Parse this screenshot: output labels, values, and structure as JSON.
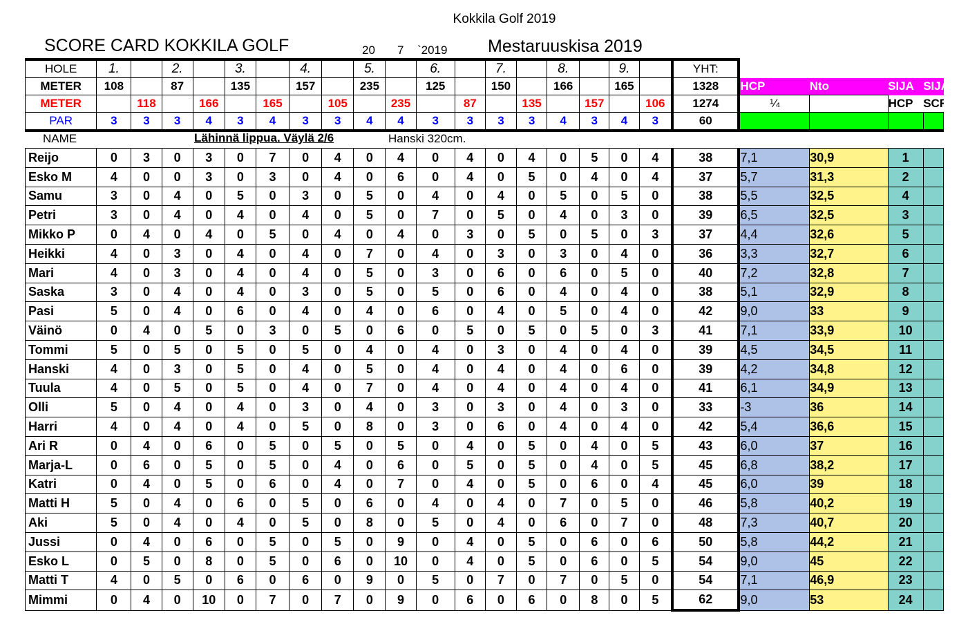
{
  "doc_title": "Kokkila Golf 2019",
  "card_title": "SCORE  CARD KOKKILA GOLF",
  "date": {
    "day": "20",
    "month": "7",
    "year": "`2019"
  },
  "competition": "Mestaruuskisa 2019",
  "labels": {
    "hole": "HOLE",
    "meter": "METER",
    "meter_red": "METER",
    "par": "PAR",
    "yht": "YHT:",
    "name": "NAME",
    "hcp": "HCP",
    "nto": "Nto",
    "sija1": "SIJA",
    "sija2": "SIJA",
    "hcp_small": "HCP",
    "scr_small": "SCR",
    "quarter": "¼"
  },
  "note": "Lähinnä lippua. Väylä 2/6",
  "note2": "Hanski 320cm.",
  "holes": [
    "1.",
    "2.",
    "3.",
    "4.",
    "5.",
    "6.",
    "7.",
    "8.",
    "9."
  ],
  "meter_row": [
    "108",
    "",
    "87",
    "",
    "135",
    "",
    "157",
    "",
    "235",
    "",
    "125",
    "",
    "150",
    "",
    "166",
    "",
    "165",
    ""
  ],
  "meter_total": "1328",
  "meter_red_row": [
    "",
    "118",
    "",
    "166",
    "",
    "165",
    "",
    "105",
    "",
    "235",
    "",
    "87",
    "",
    "135",
    "",
    "157",
    "",
    "106"
  ],
  "meter_red_total": "1274",
  "par_row": [
    "3",
    "3",
    "3",
    "4",
    "3",
    "4",
    "3",
    "3",
    "4",
    "4",
    "3",
    "3",
    "3",
    "3",
    "4",
    "3",
    "4",
    "3"
  ],
  "par_total": "60",
  "players": [
    {
      "name": "Reijo",
      "scores": [
        "0",
        "3",
        "0",
        "3",
        "0",
        "7",
        "0",
        "4",
        "0",
        "4",
        "0",
        "4",
        "0",
        "4",
        "0",
        "5",
        "0",
        "4"
      ],
      "total": "38",
      "hcp": "7,1",
      "nto": "30,9",
      "sija": "1"
    },
    {
      "name": "Esko M",
      "scores": [
        "4",
        "0",
        "0",
        "3",
        "0",
        "3",
        "0",
        "4",
        "0",
        "6",
        "0",
        "4",
        "0",
        "5",
        "0",
        "4",
        "0",
        "4"
      ],
      "total": "37",
      "hcp": " 5,7",
      "nto": "31,3",
      "sija": "2"
    },
    {
      "name": "Samu",
      "scores": [
        "3",
        "0",
        "4",
        "0",
        "5",
        "0",
        "3",
        "0",
        "5",
        "0",
        "4",
        "0",
        "4",
        "0",
        "5",
        "0",
        "5",
        "0"
      ],
      "total": "38",
      "hcp": "5,5",
      "nto": "32,5",
      "sija": "4"
    },
    {
      "name": "Petri",
      "scores": [
        "3",
        "0",
        "4",
        "0",
        "4",
        "0",
        "4",
        "0",
        "5",
        "0",
        "7",
        "0",
        "5",
        "0",
        "4",
        "0",
        "3",
        "0"
      ],
      "total": "39",
      "hcp": " 6,5",
      "nto": "32,5",
      "sija": "3"
    },
    {
      "name": "Mikko P",
      "scores": [
        "0",
        "4",
        "0",
        "4",
        "0",
        "5",
        "0",
        "4",
        "0",
        "4",
        "0",
        "3",
        "0",
        "5",
        "0",
        "5",
        "0",
        "3"
      ],
      "total": "37",
      "hcp": " 4,4",
      "nto": "32,6",
      "sija": "5"
    },
    {
      "name": "Heikki",
      "scores": [
        "4",
        "0",
        "3",
        "0",
        "4",
        "0",
        "4",
        "0",
        "7",
        "0",
        "4",
        "0",
        "3",
        "0",
        "3",
        "0",
        "4",
        "0"
      ],
      "total": "36",
      "hcp": " 3,3",
      "nto": "32,7",
      "sija": "6"
    },
    {
      "name": "Mari",
      "scores": [
        "4",
        "0",
        "3",
        "0",
        "4",
        "0",
        "4",
        "0",
        "5",
        "0",
        "3",
        "0",
        "6",
        "0",
        "6",
        "0",
        "5",
        "0"
      ],
      "total": "40",
      "hcp": "7,2",
      "nto": "32,8",
      "sija": "7"
    },
    {
      "name": "Saska",
      "scores": [
        "3",
        "0",
        "4",
        "0",
        "4",
        "0",
        "3",
        "0",
        "5",
        "0",
        "5",
        "0",
        "6",
        "0",
        "4",
        "0",
        "4",
        "0"
      ],
      "total": "38",
      "hcp": " 5,1",
      "nto": "32,9",
      "sija": "8"
    },
    {
      "name": "Pasi",
      "scores": [
        "5",
        "0",
        "4",
        "0",
        "6",
        "0",
        "4",
        "0",
        "4",
        "0",
        "6",
        "0",
        "4",
        "0",
        "5",
        "0",
        "4",
        "0"
      ],
      "total": "42",
      "hcp": " 9,0",
      "nto": "33",
      "sija": "9"
    },
    {
      "name": "Väinö",
      "scores": [
        "0",
        "4",
        "0",
        "5",
        "0",
        "3",
        "0",
        "5",
        "0",
        "6",
        "0",
        "5",
        "0",
        "5",
        "0",
        "5",
        "0",
        "3"
      ],
      "total": "41",
      "hcp": "7,1",
      "nto": "33,9",
      "sija": "10"
    },
    {
      "name": "Tommi",
      "scores": [
        "5",
        "0",
        "5",
        "0",
        "5",
        "0",
        "5",
        "0",
        "4",
        "0",
        "4",
        "0",
        "3",
        "0",
        "4",
        "0",
        "4",
        "0"
      ],
      "total": "39",
      "hcp": " 4,5",
      "nto": "34,5",
      "sija": "11"
    },
    {
      "name": "Hanski",
      "scores": [
        "4",
        "0",
        "3",
        "0",
        "5",
        "0",
        "4",
        "0",
        "5",
        "0",
        "4",
        "0",
        "4",
        "0",
        "4",
        "0",
        "6",
        "0"
      ],
      "total": "39",
      "hcp": " 4,2",
      "nto": "34,8",
      "sija": "12"
    },
    {
      "name": "Tuula",
      "scores": [
        "4",
        "0",
        "5",
        "0",
        "5",
        "0",
        "4",
        "0",
        "7",
        "0",
        "4",
        "0",
        "4",
        "0",
        "4",
        "0",
        "4",
        "0"
      ],
      "total": "41",
      "hcp": " 6,1",
      "nto": "34,9",
      "sija": "13"
    },
    {
      "name": "Olli",
      "scores": [
        "5",
        "0",
        "4",
        "0",
        "4",
        "0",
        "3",
        "0",
        "4",
        "0",
        "3",
        "0",
        "3",
        "0",
        "4",
        "0",
        "3",
        "0"
      ],
      "total": "33",
      "hcp": "-3",
      "nto": "36",
      "sija": "14"
    },
    {
      "name": "Harri",
      "scores": [
        "4",
        "0",
        "4",
        "0",
        "4",
        "0",
        "5",
        "0",
        "8",
        "0",
        "3",
        "0",
        "6",
        "0",
        "4",
        "0",
        "4",
        "0"
      ],
      "total": "42",
      "hcp": " 5,4",
      "nto": "36,6",
      "sija": "15"
    },
    {
      "name": "Ari R",
      "scores": [
        "0",
        "4",
        "0",
        "6",
        "0",
        "5",
        "0",
        "5",
        "0",
        "5",
        "0",
        "4",
        "0",
        "5",
        "0",
        "4",
        "0",
        "5"
      ],
      "total": "43",
      "hcp": " 6,0",
      "nto": "37",
      "sija": "16"
    },
    {
      "name": "Marja-L",
      "scores": [
        "0",
        "6",
        "0",
        "5",
        "0",
        "5",
        "0",
        "4",
        "0",
        "6",
        "0",
        "5",
        "0",
        "5",
        "0",
        "4",
        "0",
        "5"
      ],
      "total": "45",
      "hcp": "6,8",
      "nto": "38,2",
      "sija": "17"
    },
    {
      "name": "Katri",
      "scores": [
        "0",
        "4",
        "0",
        "5",
        "0",
        "6",
        "0",
        "4",
        "0",
        "7",
        "0",
        "4",
        "0",
        "5",
        "0",
        "6",
        "0",
        "4"
      ],
      "total": "45",
      "hcp": " 6,0",
      "nto": "39",
      "sija": "18"
    },
    {
      "name": "Matti H",
      "scores": [
        "5",
        "0",
        "4",
        "0",
        "6",
        "0",
        "5",
        "0",
        "6",
        "0",
        "4",
        "0",
        "4",
        "0",
        "7",
        "0",
        "5",
        "0"
      ],
      "total": "46",
      "hcp": " 5,8",
      "nto": "40,2",
      "sija": "19"
    },
    {
      "name": "Aki",
      "scores": [
        "5",
        "0",
        "4",
        "0",
        "4",
        "0",
        "5",
        "0",
        "8",
        "0",
        "5",
        "0",
        "4",
        "0",
        "6",
        "0",
        "7",
        "0"
      ],
      "total": "48",
      "hcp": "7,3",
      "nto": "40,7",
      "sija": "20"
    },
    {
      "name": "Jussi",
      "scores": [
        "0",
        "4",
        "0",
        "6",
        "0",
        "5",
        "0",
        "5",
        "0",
        "9",
        "0",
        "4",
        "0",
        "5",
        "0",
        "6",
        "0",
        "6"
      ],
      "total": "50",
      "hcp": " 5,8",
      "nto": "44,2",
      "sija": "21"
    },
    {
      "name": "Esko L",
      "scores": [
        "0",
        "5",
        "0",
        "8",
        "0",
        "5",
        "0",
        "6",
        "0",
        "10",
        "0",
        "4",
        "0",
        "5",
        "0",
        "6",
        "0",
        "5"
      ],
      "total": "54",
      "hcp": " 9,0",
      "nto": "45",
      "sija": "22"
    },
    {
      "name": "Matti T",
      "scores": [
        "4",
        "0",
        "5",
        "0",
        "6",
        "0",
        "6",
        "0",
        "9",
        "0",
        "5",
        "0",
        "7",
        "0",
        "7",
        "0",
        "5",
        "0"
      ],
      "total": "54",
      "hcp": "7,1",
      "nto": "46,9",
      "sija": "23"
    },
    {
      "name": "Mimmi",
      "scores": [
        "0",
        "4",
        "0",
        "10",
        "0",
        "7",
        "0",
        "7",
        "0",
        "9",
        "0",
        "6",
        "0",
        "6",
        "0",
        "8",
        "0",
        "5"
      ],
      "total": "62",
      "hcp": " 9,0",
      "nto": "53",
      "sija": "24"
    }
  ]
}
